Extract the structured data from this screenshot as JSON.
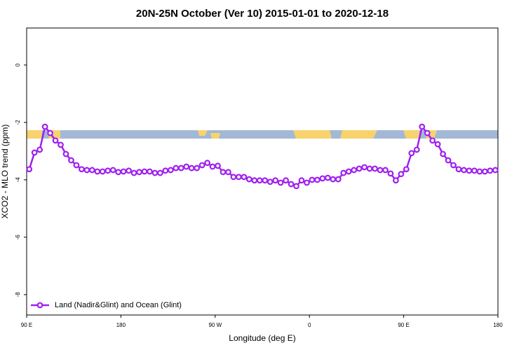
{
  "chart_data": {
    "type": "line",
    "title": "20N-25N October (Ver 10)   2015-01-01 to 2020-12-18",
    "x_label": "Longitude (deg E)",
    "y_label": "XCO2 - MLO trend (ppm)",
    "xlim": [
      90,
      540
    ],
    "ylim": [
      -8.71,
      1.29
    ],
    "xticks": [
      {
        "value": 90,
        "label": "90 E"
      },
      180,
      {
        "value": 270,
        "label": "90 W"
      },
      {
        "value": 360,
        "label": "0"
      },
      {
        "value": 450,
        "label": "90 E"
      },
      {
        "value": 540,
        "label": "180"
      }
    ],
    "yticks": [
      -8,
      -6,
      -4,
      -2,
      0
    ],
    "legend": "bottomleft",
    "x": [
      92.5,
      97.5,
      102.5,
      107.5,
      112.5,
      117.5,
      122.5,
      127.5,
      132.5,
      137.5,
      142.5,
      147.5,
      152.5,
      157.5,
      162.5,
      167.5,
      172.5,
      177.5,
      182.5,
      187.5,
      192.5,
      197.5,
      202.5,
      207.5,
      212.5,
      217.5,
      222.5,
      227.5,
      232.5,
      237.5,
      242.5,
      247.5,
      252.5,
      257.5,
      262.5,
      267.5,
      272.5,
      277.5,
      282.5,
      287.5,
      292.5,
      297.5,
      302.5,
      307.5,
      312.5,
      317.5,
      322.5,
      327.5,
      332.5,
      337.5,
      342.5,
      347.5,
      352.5,
      357.5,
      362.5,
      367.5,
      372.5,
      377.5,
      382.5,
      387.5,
      392.5,
      397.5,
      402.5,
      407.5,
      412.5,
      417.5,
      422.5,
      427.5,
      432.5,
      437.5,
      442.5,
      447.5,
      452.5,
      457.5,
      462.5,
      467.5,
      472.5,
      477.5,
      482.5,
      487.5,
      492.5,
      497.5,
      502.5,
      507.5,
      512.5,
      517.5,
      522.5,
      527.5,
      532.5,
      537.5
    ],
    "series": [
      {
        "name": "Land (Nadir&Glint) and Ocean (Glint)",
        "color": "#a020f0",
        "values": [
          -3.63,
          -3.05,
          -2.95,
          -2.15,
          -2.37,
          -2.63,
          -2.78,
          -3.1,
          -3.32,
          -3.49,
          -3.63,
          -3.66,
          -3.66,
          -3.71,
          -3.71,
          -3.68,
          -3.66,
          -3.73,
          -3.71,
          -3.68,
          -3.76,
          -3.73,
          -3.71,
          -3.71,
          -3.76,
          -3.76,
          -3.68,
          -3.66,
          -3.59,
          -3.59,
          -3.54,
          -3.59,
          -3.59,
          -3.49,
          -3.41,
          -3.54,
          -3.51,
          -3.73,
          -3.73,
          -3.9,
          -3.9,
          -3.9,
          -3.98,
          -4.02,
          -4.02,
          -4.02,
          -4.07,
          -4.02,
          -4.1,
          -4.02,
          -4.15,
          -4.22,
          -4.02,
          -4.1,
          -4.0,
          -4.0,
          -3.95,
          -3.93,
          -3.98,
          -3.98,
          -3.76,
          -3.71,
          -3.66,
          -3.61,
          -3.56,
          -3.61,
          -3.61,
          -3.66,
          -3.66,
          -3.78,
          -4.02,
          -3.8,
          -3.63,
          -3.07,
          -2.95,
          -2.15,
          -2.37,
          -2.63,
          -2.76,
          -3.1,
          -3.32,
          -3.49,
          -3.63,
          -3.66,
          -3.68,
          -3.68,
          -3.71,
          -3.71,
          -3.68,
          -3.66
        ]
      }
    ]
  }
}
